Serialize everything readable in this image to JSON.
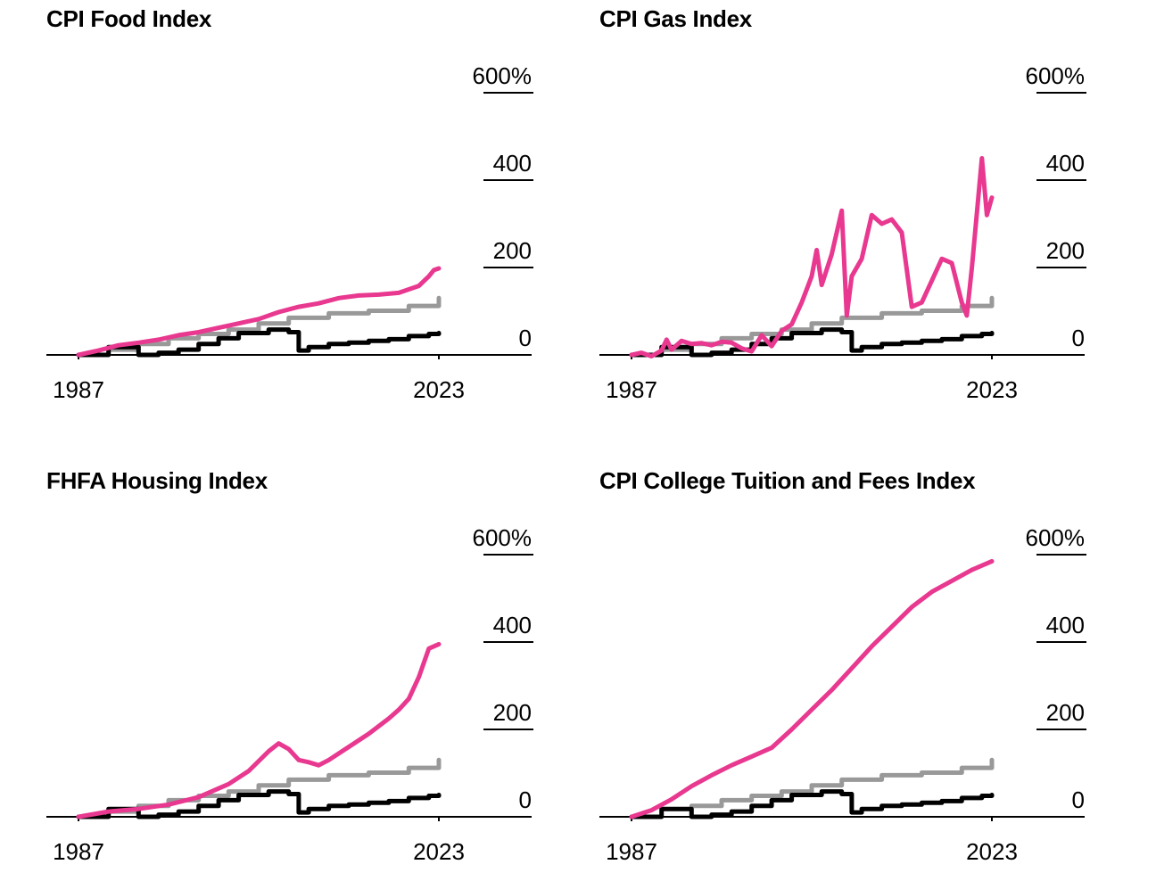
{
  "colors": {
    "index": "#e8388f",
    "cpi_all": "#999999",
    "wages": "#000000",
    "axis": "#000000"
  },
  "chart_data": [
    {
      "type": "line",
      "title": "CPI Food Index",
      "xlim": [
        1987,
        2023
      ],
      "ylim": [
        0,
        600
      ],
      "y_ticks": [
        {
          "value": 0,
          "label": "0"
        },
        {
          "value": 200,
          "label": "200"
        },
        {
          "value": 400,
          "label": "400"
        },
        {
          "value": 600,
          "label": "600%"
        }
      ],
      "x_ticks": [
        {
          "value": 1987,
          "label": "1987"
        },
        {
          "value": 2023,
          "label": "2023"
        }
      ],
      "series": [
        {
          "color_key": "cpi_all",
          "step": true,
          "points": [
            [
              1987,
              0
            ],
            [
              1990,
              12
            ],
            [
              1993,
              25
            ],
            [
              1996,
              38
            ],
            [
              1999,
              48
            ],
            [
              2002,
              58
            ],
            [
              2005,
              72
            ],
            [
              2008,
              85
            ],
            [
              2012,
              95
            ],
            [
              2016,
              101
            ],
            [
              2020,
              112
            ],
            [
              2023,
              130
            ]
          ]
        },
        {
          "color_key": "wages",
          "step": true,
          "points": [
            [
              1987,
              0
            ],
            [
              1990,
              18
            ],
            [
              1993,
              0
            ],
            [
              1995,
              5
            ],
            [
              1997,
              12
            ],
            [
              1999,
              25
            ],
            [
              2001,
              38
            ],
            [
              2003,
              50
            ],
            [
              2006,
              58
            ],
            [
              2008,
              52
            ],
            [
              2009,
              10
            ],
            [
              2010,
              18
            ],
            [
              2012,
              25
            ],
            [
              2014,
              28
            ],
            [
              2016,
              32
            ],
            [
              2018,
              36
            ],
            [
              2020,
              43
            ],
            [
              2022,
              48
            ],
            [
              2023,
              50
            ]
          ]
        },
        {
          "color_key": "index",
          "step": false,
          "points": [
            [
              1987,
              0
            ],
            [
              1989,
              10
            ],
            [
              1991,
              22
            ],
            [
              1993,
              28
            ],
            [
              1995,
              35
            ],
            [
              1997,
              45
            ],
            [
              1999,
              52
            ],
            [
              2001,
              62
            ],
            [
              2003,
              72
            ],
            [
              2005,
              82
            ],
            [
              2007,
              98
            ],
            [
              2009,
              110
            ],
            [
              2011,
              118
            ],
            [
              2013,
              130
            ],
            [
              2015,
              136
            ],
            [
              2017,
              138
            ],
            [
              2019,
              142
            ],
            [
              2020,
              150
            ],
            [
              2021,
              158
            ],
            [
              2022,
              180
            ],
            [
              2022.5,
              194
            ],
            [
              2023,
              198
            ]
          ]
        }
      ]
    },
    {
      "type": "line",
      "title": "CPI Gas Index",
      "xlim": [
        1987,
        2023
      ],
      "ylim": [
        0,
        600
      ],
      "y_ticks": [
        {
          "value": 0,
          "label": "0"
        },
        {
          "value": 200,
          "label": "200"
        },
        {
          "value": 400,
          "label": "400"
        },
        {
          "value": 600,
          "label": "600%"
        }
      ],
      "x_ticks": [
        {
          "value": 1987,
          "label": "1987"
        },
        {
          "value": 2023,
          "label": "2023"
        }
      ],
      "series": [
        {
          "color_key": "cpi_all",
          "step": true,
          "points": [
            [
              1987,
              0
            ],
            [
              1990,
              12
            ],
            [
              1993,
              25
            ],
            [
              1996,
              38
            ],
            [
              1999,
              48
            ],
            [
              2002,
              58
            ],
            [
              2005,
              72
            ],
            [
              2008,
              85
            ],
            [
              2012,
              95
            ],
            [
              2016,
              101
            ],
            [
              2020,
              112
            ],
            [
              2023,
              130
            ]
          ]
        },
        {
          "color_key": "wages",
          "step": true,
          "points": [
            [
              1987,
              0
            ],
            [
              1990,
              18
            ],
            [
              1993,
              0
            ],
            [
              1995,
              5
            ],
            [
              1997,
              12
            ],
            [
              1999,
              25
            ],
            [
              2001,
              38
            ],
            [
              2003,
              50
            ],
            [
              2006,
              58
            ],
            [
              2008,
              52
            ],
            [
              2009,
              10
            ],
            [
              2010,
              18
            ],
            [
              2012,
              25
            ],
            [
              2014,
              28
            ],
            [
              2016,
              32
            ],
            [
              2018,
              36
            ],
            [
              2020,
              43
            ],
            [
              2022,
              48
            ],
            [
              2023,
              50
            ]
          ]
        },
        {
          "color_key": "index",
          "step": false,
          "points": [
            [
              1987,
              0
            ],
            [
              1988,
              5
            ],
            [
              1989,
              -3
            ],
            [
              1990,
              10
            ],
            [
              1990.5,
              35
            ],
            [
              1991,
              12
            ],
            [
              1992,
              32
            ],
            [
              1993,
              25
            ],
            [
              1994,
              27
            ],
            [
              1995,
              22
            ],
            [
              1996,
              30
            ],
            [
              1997,
              28
            ],
            [
              1998,
              15
            ],
            [
              1999,
              8
            ],
            [
              2000,
              45
            ],
            [
              2001,
              20
            ],
            [
              2002,
              55
            ],
            [
              2003,
              70
            ],
            [
              2004,
              120
            ],
            [
              2005,
              180
            ],
            [
              2005.5,
              240
            ],
            [
              2006,
              160
            ],
            [
              2007,
              230
            ],
            [
              2008,
              330
            ],
            [
              2008.5,
              90
            ],
            [
              2009,
              180
            ],
            [
              2010,
              220
            ],
            [
              2011,
              320
            ],
            [
              2012,
              300
            ],
            [
              2013,
              310
            ],
            [
              2014,
              280
            ],
            [
              2015,
              110
            ],
            [
              2016,
              120
            ],
            [
              2017,
              170
            ],
            [
              2018,
              220
            ],
            [
              2019,
              210
            ],
            [
              2020,
              120
            ],
            [
              2020.5,
              90
            ],
            [
              2021,
              200
            ],
            [
              2022,
              450
            ],
            [
              2022.5,
              320
            ],
            [
              2023,
              360
            ]
          ]
        }
      ]
    },
    {
      "type": "line",
      "title": "FHFA Housing Index",
      "xlim": [
        1987,
        2023
      ],
      "ylim": [
        0,
        600
      ],
      "y_ticks": [
        {
          "value": 0,
          "label": "0"
        },
        {
          "value": 200,
          "label": "200"
        },
        {
          "value": 400,
          "label": "400"
        },
        {
          "value": 600,
          "label": "600%"
        }
      ],
      "x_ticks": [
        {
          "value": 1987,
          "label": "1987"
        },
        {
          "value": 2023,
          "label": "2023"
        }
      ],
      "series": [
        {
          "color_key": "cpi_all",
          "step": true,
          "points": [
            [
              1987,
              0
            ],
            [
              1990,
              12
            ],
            [
              1993,
              25
            ],
            [
              1996,
              38
            ],
            [
              1999,
              48
            ],
            [
              2002,
              58
            ],
            [
              2005,
              72
            ],
            [
              2008,
              85
            ],
            [
              2012,
              95
            ],
            [
              2016,
              101
            ],
            [
              2020,
              112
            ],
            [
              2023,
              130
            ]
          ]
        },
        {
          "color_key": "wages",
          "step": true,
          "points": [
            [
              1987,
              0
            ],
            [
              1990,
              18
            ],
            [
              1993,
              0
            ],
            [
              1995,
              5
            ],
            [
              1997,
              12
            ],
            [
              1999,
              25
            ],
            [
              2001,
              38
            ],
            [
              2003,
              50
            ],
            [
              2006,
              58
            ],
            [
              2008,
              52
            ],
            [
              2009,
              10
            ],
            [
              2010,
              18
            ],
            [
              2012,
              25
            ],
            [
              2014,
              28
            ],
            [
              2016,
              32
            ],
            [
              2018,
              36
            ],
            [
              2020,
              43
            ],
            [
              2022,
              48
            ],
            [
              2023,
              50
            ]
          ]
        },
        {
          "color_key": "index",
          "step": false,
          "points": [
            [
              1987,
              0
            ],
            [
              1990,
              12
            ],
            [
              1993,
              18
            ],
            [
              1996,
              28
            ],
            [
              1999,
              45
            ],
            [
              2002,
              75
            ],
            [
              2004,
              105
            ],
            [
              2006,
              150
            ],
            [
              2007,
              168
            ],
            [
              2008,
              155
            ],
            [
              2009,
              130
            ],
            [
              2010,
              125
            ],
            [
              2011,
              118
            ],
            [
              2012,
              130
            ],
            [
              2014,
              160
            ],
            [
              2016,
              190
            ],
            [
              2018,
              225
            ],
            [
              2019,
              245
            ],
            [
              2020,
              270
            ],
            [
              2021,
              320
            ],
            [
              2022,
              385
            ],
            [
              2023,
              395
            ]
          ]
        }
      ]
    },
    {
      "type": "line",
      "title": "CPI College Tuition and Fees Index",
      "xlim": [
        1987,
        2023
      ],
      "ylim": [
        0,
        600
      ],
      "y_ticks": [
        {
          "value": 0,
          "label": "0"
        },
        {
          "value": 200,
          "label": "200"
        },
        {
          "value": 400,
          "label": "400"
        },
        {
          "value": 600,
          "label": "600%"
        }
      ],
      "x_ticks": [
        {
          "value": 1987,
          "label": "1987"
        },
        {
          "value": 2023,
          "label": "2023"
        }
      ],
      "series": [
        {
          "color_key": "cpi_all",
          "step": true,
          "points": [
            [
              1993,
              25
            ],
            [
              1996,
              38
            ],
            [
              1999,
              48
            ],
            [
              2002,
              58
            ],
            [
              2005,
              72
            ],
            [
              2008,
              85
            ],
            [
              2012,
              95
            ],
            [
              2016,
              101
            ],
            [
              2020,
              112
            ],
            [
              2023,
              130
            ]
          ]
        },
        {
          "color_key": "wages",
          "step": true,
          "points": [
            [
              1987,
              0
            ],
            [
              1990,
              18
            ],
            [
              1993,
              0
            ],
            [
              1995,
              5
            ],
            [
              1997,
              12
            ],
            [
              1999,
              25
            ],
            [
              2001,
              38
            ],
            [
              2003,
              50
            ],
            [
              2006,
              58
            ],
            [
              2008,
              52
            ],
            [
              2009,
              10
            ],
            [
              2010,
              18
            ],
            [
              2012,
              25
            ],
            [
              2014,
              28
            ],
            [
              2016,
              32
            ],
            [
              2018,
              36
            ],
            [
              2020,
              43
            ],
            [
              2022,
              48
            ],
            [
              2023,
              50
            ]
          ]
        },
        {
          "color_key": "index",
          "step": false,
          "points": [
            [
              1987,
              0
            ],
            [
              1989,
              15
            ],
            [
              1991,
              40
            ],
            [
              1993,
              70
            ],
            [
              1995,
              95
            ],
            [
              1997,
              118
            ],
            [
              1999,
              138
            ],
            [
              2001,
              158
            ],
            [
              2003,
              200
            ],
            [
              2005,
              245
            ],
            [
              2007,
              290
            ],
            [
              2009,
              340
            ],
            [
              2011,
              390
            ],
            [
              2013,
              435
            ],
            [
              2015,
              480
            ],
            [
              2017,
              515
            ],
            [
              2019,
              540
            ],
            [
              2021,
              565
            ],
            [
              2023,
              585
            ]
          ]
        }
      ]
    }
  ]
}
